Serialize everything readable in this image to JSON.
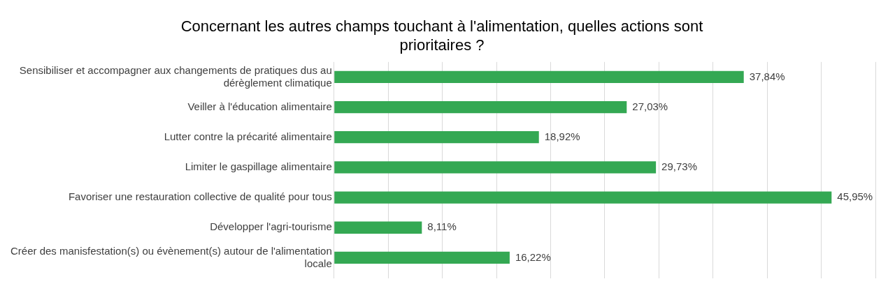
{
  "chart_data": {
    "type": "bar",
    "orientation": "horizontal",
    "title": "Concernant les autres champs touchant à l'alimentation, quelles actions sont prioritaires ?",
    "categories": [
      "Sensibiliser et accompagner aux changements de pratiques dus au dérèglement climatique",
      "Veiller à l'éducation alimentaire",
      "Lutter contre la précarité alimentaire",
      "Limiter le gaspillage alimentaire",
      "Favoriser une restauration collective de qualité pour tous",
      "Développer l'agri-tourisme",
      "Créer des manisfestation(s) ou évènement(s) autour de l'alimentation locale"
    ],
    "values": [
      37.84,
      27.03,
      18.92,
      29.73,
      45.95,
      8.11,
      16.22
    ],
    "value_labels": [
      "37,84%",
      "27,03%",
      "18,92%",
      "29,73%",
      "45,95%",
      "8,11%",
      "16,22%"
    ],
    "color": "#34a853",
    "xlim": [
      0,
      50
    ],
    "xticks": [
      {
        "value": 0,
        "label": null
      },
      {
        "value": 5,
        "label": null
      },
      {
        "value": 10,
        "label": null
      },
      {
        "value": 15,
        "label": null
      },
      {
        "value": 20,
        "label": null
      },
      {
        "value": 25,
        "label": null
      },
      {
        "value": 30,
        "label": null
      },
      {
        "value": 35,
        "label": null
      },
      {
        "value": 40,
        "label": null
      },
      {
        "value": 45,
        "label": null
      },
      {
        "value": 50,
        "label": null
      }
    ],
    "tick_labels": "y",
    "grid": "x",
    "legend": false
  }
}
